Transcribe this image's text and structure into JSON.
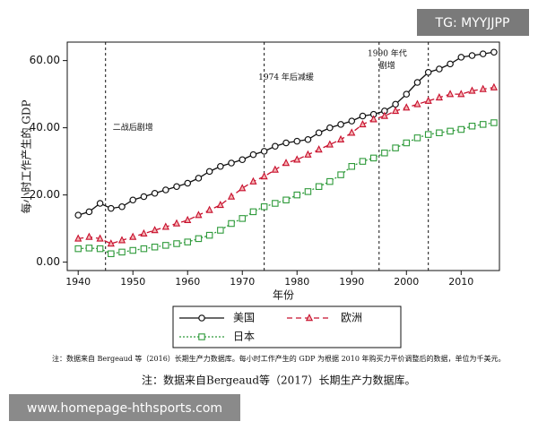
{
  "chart_data": {
    "type": "line",
    "ylabel": "每小时工作产生的 GDP",
    "xlabel": "年份",
    "annotations": [
      {
        "text": "二战后剧增",
        "x": 1950,
        "y": 40
      },
      {
        "text": "1974 年后减缓",
        "x": 1978,
        "y": 55
      },
      {
        "text": "1990 年代",
        "x": 1996.5,
        "y": 62
      },
      {
        "text": "剧增",
        "x": 1996.5,
        "y": 58.5
      }
    ],
    "vlines": [
      1945,
      1974,
      1995,
      2004
    ],
    "xlim": [
      1938,
      2017
    ],
    "xticks": [
      1940,
      1950,
      1960,
      1970,
      1980,
      1990,
      2000,
      2010
    ],
    "ylim": [
      -2.5,
      65.5
    ],
    "yticks": [
      {
        "value": 0,
        "label": "0.00"
      },
      {
        "value": 20,
        "label": "20.00"
      },
      {
        "value": 40,
        "label": "40.00"
      },
      {
        "value": 60,
        "label": "60.00"
      }
    ],
    "x": [
      1940,
      1942,
      1944,
      1946,
      1948,
      1950,
      1952,
      1954,
      1956,
      1958,
      1960,
      1962,
      1964,
      1966,
      1968,
      1970,
      1972,
      1974,
      1976,
      1978,
      1980,
      1982,
      1984,
      1986,
      1988,
      1990,
      1992,
      1994,
      1996,
      1998,
      2000,
      2002,
      2004,
      2006,
      2008,
      2010,
      2012,
      2014,
      2016
    ],
    "series": [
      {
        "name": "美国",
        "color": "#111111",
        "line_style": "solid",
        "marker": "circle",
        "values": [
          14,
          15,
          17.5,
          16,
          16.5,
          18.5,
          19.5,
          20.5,
          21.5,
          22.5,
          23.5,
          25,
          27,
          28.5,
          29.5,
          30.5,
          32,
          33,
          34.5,
          35.5,
          36,
          36.5,
          38.5,
          40,
          41,
          42,
          43.5,
          44,
          45,
          47,
          50,
          53.5,
          56.5,
          57.5,
          59,
          61,
          61.5,
          62,
          62.5
        ]
      },
      {
        "name": "欧洲",
        "color": "#c8102e",
        "line_style": "dashed",
        "marker": "triangle",
        "values": [
          7,
          7.5,
          7,
          5.5,
          6.5,
          7.5,
          8.5,
          9.5,
          10.5,
          11.5,
          12.5,
          14,
          15.5,
          17,
          19.5,
          22,
          24,
          25.5,
          27.5,
          29.5,
          30.5,
          32,
          33.5,
          35,
          36.5,
          38.5,
          41,
          42.5,
          43.5,
          45,
          46,
          47,
          48,
          49,
          50,
          50,
          51,
          51.5,
          52
        ]
      },
      {
        "name": "日本",
        "color": "#2e9a3a",
        "line_style": "dotted",
        "marker": "square",
        "values": [
          4,
          4.2,
          4,
          2.5,
          3,
          3.5,
          4,
          4.5,
          5,
          5.5,
          6,
          7,
          8,
          9.5,
          11.5,
          13,
          15,
          16.5,
          17.5,
          18.5,
          20,
          21,
          22.5,
          24,
          26,
          28.5,
          30,
          31,
          32.5,
          34,
          35.5,
          37,
          38,
          38.5,
          39,
          39.5,
          40.5,
          41,
          41.5
        ]
      }
    ]
  },
  "notes": [
    "注：数据来自 Bergeaud 等（2016）长期生产力数据库。每小时工作产生的 GDP 为根据 2010 年购买力平价调整后的数据，单位为千美元。",
    "注：数据来自Bergeaud等（2017）长期生产力数据库。"
  ],
  "badges": {
    "top": "TG: MYYJJPP",
    "bottom": "www.homepage-hthsports.com"
  }
}
